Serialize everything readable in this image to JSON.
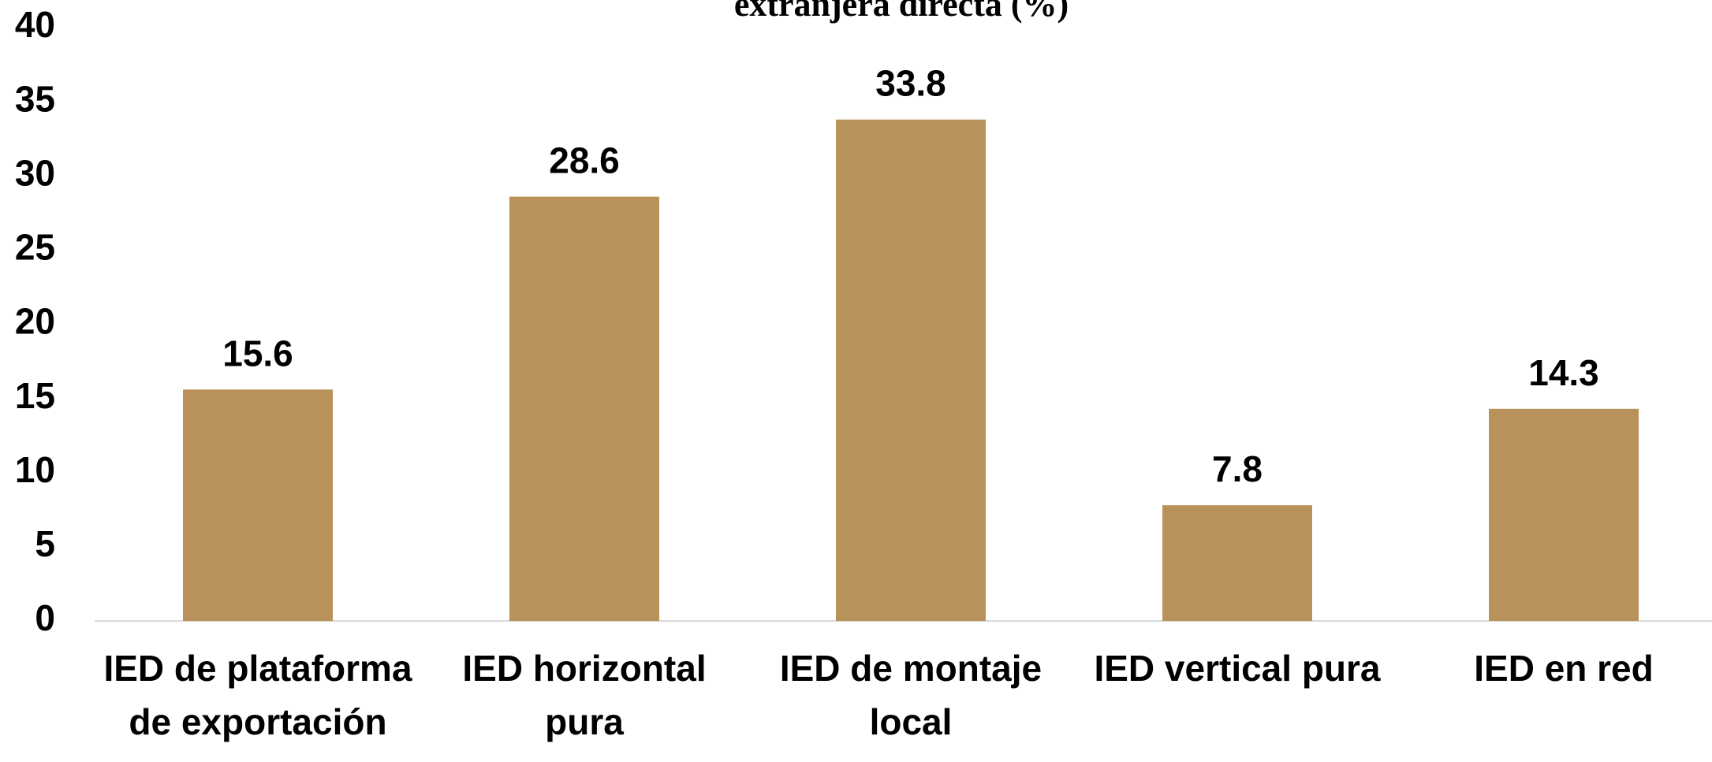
{
  "chart_data": {
    "type": "bar",
    "title": "extranjera directa (%)",
    "categories": [
      "IED de plataforma de exportación",
      "IED horizontal pura",
      "IED de montaje local",
      "IED vertical pura",
      "IED en red"
    ],
    "values": [
      15.6,
      28.6,
      33.8,
      7.8,
      14.3
    ],
    "color": "#b9925b",
    "ylim": [
      0,
      40
    ],
    "yticks": [
      0,
      5,
      10,
      15,
      20,
      25,
      30,
      35,
      40
    ],
    "grid": false
  }
}
